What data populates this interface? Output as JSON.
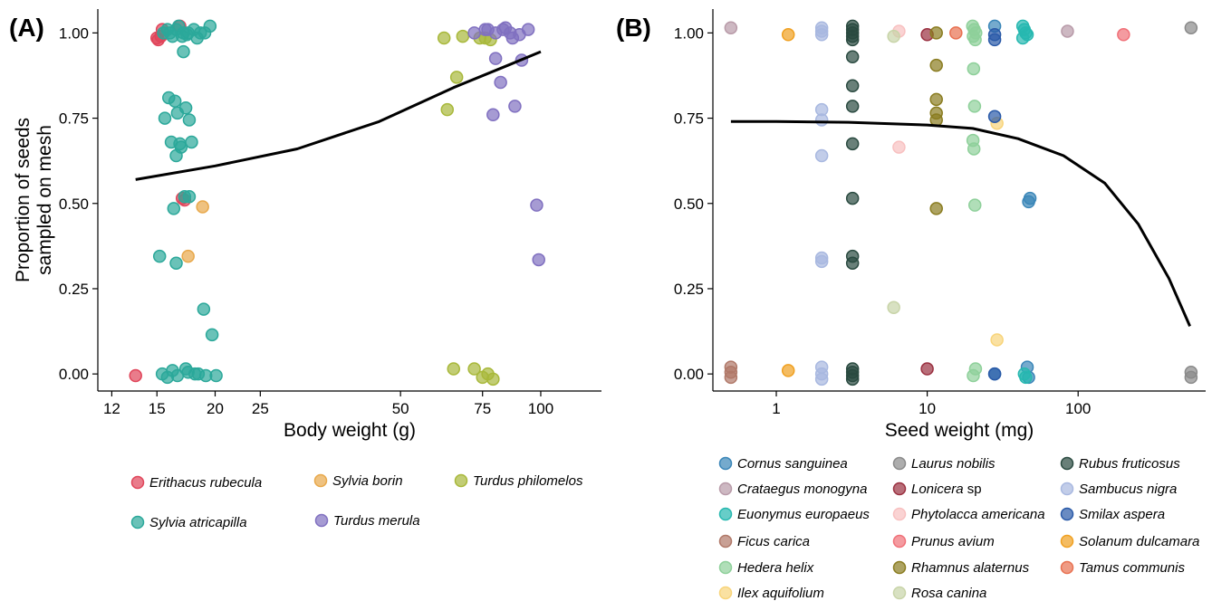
{
  "chart_data": [
    {
      "type": "scatter",
      "panel_label": "(A)",
      "xlabel": "Body weight (g)",
      "ylabel_lines": [
        "Proportion of seeds",
        "sampled on mesh"
      ],
      "x_scale": "log",
      "xlim": [
        11.2,
        135
      ],
      "ylim": [
        -0.05,
        1.07
      ],
      "x_ticks": [
        12,
        15,
        20,
        25,
        50,
        75,
        100
      ],
      "x_tick_labels": [
        "12",
        "15",
        "20",
        "25",
        "50",
        "75",
        "100"
      ],
      "y_ticks": [
        0,
        0.25,
        0.5,
        0.75,
        1.0
      ],
      "y_tick_labels": [
        "0.00",
        "0.25",
        "0.50",
        "0.75",
        "1.00"
      ],
      "grid": false,
      "legend_position": "bottom",
      "fit_curve": {
        "x": [
          13.5,
          20,
          30,
          45,
          65,
          85,
          100
        ],
        "y": [
          0.57,
          0.61,
          0.66,
          0.74,
          0.84,
          0.905,
          0.945
        ]
      },
      "series": [
        {
          "name": "Erithacus rubecula",
          "color": "#e0455a",
          "x": [
            13.5,
            15,
            15.3,
            15.4,
            16.8,
            17,
            17.2,
            15.1
          ],
          "y": [
            -0.005,
            0.985,
            0.99,
            1.01,
            1.02,
            0.515,
            0.51,
            0.98
          ]
        },
        {
          "name": "Sylvia borin",
          "color": "#e8a84a",
          "x": [
            17.5,
            18.8
          ],
          "y": [
            0.345,
            0.49
          ]
        },
        {
          "name": "Turdus philomelos",
          "color": "#a8b83a",
          "x": [
            62,
            68,
            74,
            76,
            78,
            63,
            66,
            65,
            72,
            75,
            77,
            79
          ],
          "y": [
            0.985,
            0.99,
            0.985,
            0.985,
            0.98,
            0.775,
            0.87,
            0.015,
            0.015,
            -0.01,
            0.0,
            -0.015
          ]
        },
        {
          "name": "Sylvia atricapilla",
          "color": "#2ba89a",
          "x": [
            15.5,
            16,
            16.5,
            17,
            17.5,
            18,
            19,
            19.5,
            16.2,
            17.1,
            18.3,
            15.8,
            16.7,
            17.4,
            18.6,
            15.9,
            16.4,
            17.3,
            15.6,
            16.6,
            17.6,
            16.1,
            16.8,
            17.8,
            16.9,
            16.5,
            17.2,
            16.3,
            15.2,
            18.9,
            19.7,
            16.5,
            17.6,
            17.1,
            15.4,
            16.2,
            17.3,
            18.4,
            19.1,
            20.1,
            15.8,
            16.6,
            17.5,
            18.1
          ],
          "y": [
            1.0,
            1.0,
            1.01,
            0.99,
            1.0,
            1.01,
            1.0,
            1.02,
            0.99,
            1.0,
            0.985,
            1.01,
            1.02,
            0.995,
            1.0,
            0.81,
            0.8,
            0.78,
            0.75,
            0.765,
            0.745,
            0.68,
            0.675,
            0.68,
            0.665,
            0.64,
            0.52,
            0.485,
            0.345,
            0.19,
            0.115,
            0.325,
            0.52,
            0.945,
            0.0,
            0.01,
            0.015,
            0.0,
            -0.005,
            -0.005,
            -0.01,
            -0.005,
            0.005,
            0.0
          ]
        },
        {
          "name": "Turdus merula",
          "color": "#8070c0",
          "x": [
            72,
            76,
            80,
            83,
            86,
            90,
            94,
            80,
            82,
            88,
            79,
            87,
            98,
            99,
            84,
            77,
            91
          ],
          "y": [
            1.0,
            1.01,
            1.0,
            1.01,
            1.0,
            0.995,
            1.01,
            0.925,
            0.855,
            0.785,
            0.76,
            0.985,
            0.495,
            0.335,
            1.015,
            1.01,
            0.92
          ]
        }
      ]
    },
    {
      "type": "scatter",
      "panel_label": "(B)",
      "xlabel": "Seed weight (mg)",
      "x_scale": "log",
      "xlim": [
        0.38,
        700
      ],
      "ylim": [
        -0.05,
        1.07
      ],
      "x_ticks": [
        1,
        10,
        100
      ],
      "x_tick_labels": [
        "1",
        "10",
        "100"
      ],
      "y_ticks": [
        0,
        0.25,
        0.5,
        0.75,
        1.0
      ],
      "y_tick_labels": [
        "0.00",
        "0.25",
        "0.50",
        "0.75",
        "1.00"
      ],
      "grid": false,
      "legend_position": "bottom",
      "fit_curve": {
        "x": [
          0.5,
          1,
          3,
          10,
          20,
          40,
          80,
          150,
          250,
          400,
          550
        ],
        "y": [
          0.74,
          0.74,
          0.738,
          0.73,
          0.72,
          0.69,
          0.64,
          0.56,
          0.44,
          0.28,
          0.14
        ]
      },
      "series": [
        {
          "name": "Cornus sanguinea",
          "color": "#3a86b8",
          "x": [
            28,
            48,
            47,
            46,
            28,
            47
          ],
          "y": [
            1.02,
            0.515,
            0.505,
            0.02,
            0.0,
            -0.01
          ]
        },
        {
          "name": "Crataegus monogyna",
          "color": "#b89aa8",
          "x": [
            0.5,
            85
          ],
          "y": [
            1.015,
            1.005
          ]
        },
        {
          "name": "Euonymus europaeus",
          "color": "#27b8b0",
          "x": [
            43,
            44,
            45,
            46,
            43,
            44,
            45
          ],
          "y": [
            1.02,
            1.01,
            1.0,
            0.995,
            0.985,
            0.0,
            -0.01
          ]
        },
        {
          "name": "Ficus carica",
          "color": "#b07868",
          "x": [
            0.5,
            0.5,
            0.5
          ],
          "y": [
            0.02,
            0.005,
            -0.01
          ]
        },
        {
          "name": "Hedera helix",
          "color": "#8ed09a",
          "x": [
            20,
            20.5,
            21,
            20.2,
            20.8,
            20.3,
            20.6,
            20.1,
            20.4,
            20.7,
            20.9,
            20.2
          ],
          "y": [
            1.02,
            1.01,
            1.0,
            0.99,
            0.98,
            0.895,
            0.785,
            0.685,
            0.66,
            0.495,
            0.015,
            -0.005
          ]
        },
        {
          "name": "Ilex aquifolium",
          "color": "#f8d47a",
          "x": [
            29,
            29
          ],
          "y": [
            0.735,
            0.1
          ]
        },
        {
          "name": "Laurus nobilis",
          "color": "#8a8a8a",
          "x": [
            560,
            560,
            560
          ],
          "y": [
            1.015,
            0.005,
            -0.01
          ]
        },
        {
          "name": "Lonicera sp",
          "color": "#9a3040",
          "x": [
            10,
            10
          ],
          "y": [
            0.995,
            0.015
          ]
        },
        {
          "name": "Phytolacca americana",
          "color": "#f8c0c0",
          "x": [
            6.5,
            6.5
          ],
          "y": [
            1.005,
            0.665
          ]
        },
        {
          "name": "Prunus avium",
          "color": "#f07078",
          "x": [
            200
          ],
          "y": [
            0.995
          ]
        },
        {
          "name": "Rhamnus alaternus",
          "color": "#8a7c20",
          "x": [
            11.5,
            11.5,
            11.5,
            11.5,
            11.5,
            11.5
          ],
          "y": [
            1.0,
            0.905,
            0.805,
            0.765,
            0.745,
            0.485
          ]
        },
        {
          "name": "Rosa canina",
          "color": "#c8d4a8",
          "x": [
            6,
            6
          ],
          "y": [
            0.99,
            0.195
          ]
        },
        {
          "name": "Rubus fruticosus",
          "color": "#2a4a40",
          "x": [
            3.2,
            3.2,
            3.2,
            3.2,
            3.2,
            3.2,
            3.2,
            3.2,
            3.2,
            3.2,
            3.2,
            3.2,
            3.2,
            3.2,
            3.2,
            3.2
          ],
          "y": [
            1.02,
            1.01,
            1.0,
            0.99,
            0.98,
            0.93,
            0.845,
            0.785,
            0.675,
            0.515,
            0.345,
            0.325,
            0.015,
            0.005,
            -0.005,
            -0.015
          ]
        },
        {
          "name": "Sambucus nigra",
          "color": "#a8b8e0",
          "x": [
            2,
            2,
            2,
            2,
            2,
            2,
            2,
            2,
            2,
            2,
            2
          ],
          "y": [
            1.015,
            1.005,
            0.995,
            0.775,
            0.745,
            0.64,
            0.34,
            0.33,
            0.02,
            0.0,
            -0.015
          ]
        },
        {
          "name": "Smilax aspera",
          "color": "#2a5aa8",
          "x": [
            28,
            28,
            28,
            28
          ],
          "y": [
            0.995,
            0.98,
            0.755,
            0.0
          ]
        },
        {
          "name": "Solanum dulcamara",
          "color": "#f0a020",
          "x": [
            1.2,
            1.2
          ],
          "y": [
            0.995,
            0.01
          ]
        },
        {
          "name": "Tamus communis",
          "color": "#e87050",
          "x": [
            15.5
          ],
          "y": [
            1.0
          ]
        }
      ]
    }
  ],
  "legend_A": [
    {
      "name": "Erithacus rubecula",
      "color": "#e0455a"
    },
    {
      "name": "Sylvia borin",
      "color": "#e8a84a"
    },
    {
      "name": "Turdus philomelos",
      "color": "#a8b83a"
    },
    {
      "name": "Sylvia atricapilla",
      "color": "#2ba89a"
    },
    {
      "name": "Turdus merula",
      "color": "#8070c0"
    }
  ],
  "legend_B": [
    {
      "italic": "Cornus sanguinea",
      "plain": "",
      "color": "#3a86b8"
    },
    {
      "italic": "Laurus nobilis",
      "plain": "",
      "color": "#8a8a8a"
    },
    {
      "italic": "Rubus fruticosus",
      "plain": "",
      "color": "#2a4a40"
    },
    {
      "italic": "Crataegus monogyna",
      "plain": "",
      "color": "#b89aa8"
    },
    {
      "italic": "Lonicera",
      "plain": " sp",
      "color": "#9a3040"
    },
    {
      "italic": "Sambucus nigra",
      "plain": "",
      "color": "#a8b8e0"
    },
    {
      "italic": "Euonymus europaeus",
      "plain": "",
      "color": "#27b8b0"
    },
    {
      "italic": "Phytolacca americana",
      "plain": "",
      "color": "#f8c0c0"
    },
    {
      "italic": "Smilax aspera",
      "plain": "",
      "color": "#2a5aa8"
    },
    {
      "italic": "Ficus carica",
      "plain": "",
      "color": "#b07868"
    },
    {
      "italic": "Prunus avium",
      "plain": "",
      "color": "#f07078"
    },
    {
      "italic": "Solanum dulcamara",
      "plain": "",
      "color": "#f0a020"
    },
    {
      "italic": "Hedera helix",
      "plain": "",
      "color": "#8ed09a"
    },
    {
      "italic": "Rhamnus alaternus",
      "plain": "",
      "color": "#8a7c20"
    },
    {
      "italic": "Tamus communis",
      "plain": "",
      "color": "#e87050"
    },
    {
      "italic": "Ilex aquifolium",
      "plain": "",
      "color": "#f8d47a"
    },
    {
      "italic": "Rosa canina",
      "plain": "",
      "color": "#c8d4a8"
    }
  ]
}
